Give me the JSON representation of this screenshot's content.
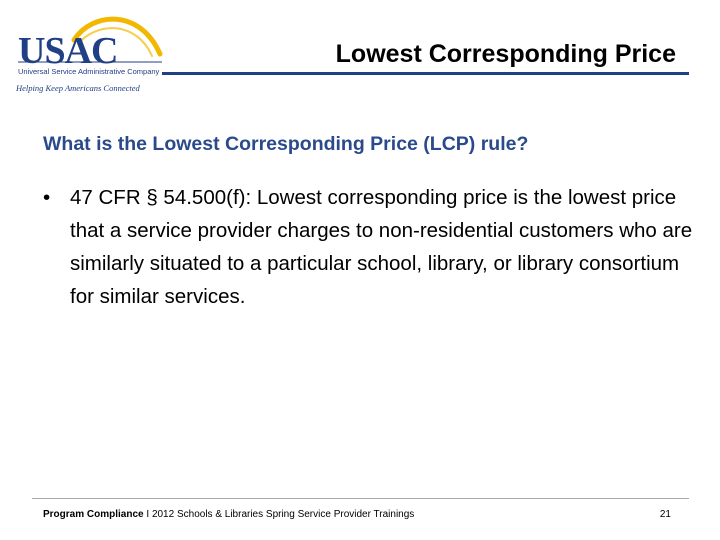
{
  "logo": {
    "wordmark": "USAC",
    "subtitle": "Universal Service Administrative Company",
    "tagline": "Helping Keep Americans Connected",
    "colors": {
      "navy": "#1f3f86",
      "gold": "#f2b800"
    }
  },
  "header": {
    "title": "Lowest Corresponding Price"
  },
  "content": {
    "subheading": "What is the Lowest Corresponding Price (LCP) rule?",
    "bullets": [
      {
        "marker": "•",
        "text": "47 CFR § 54.500(f): Lowest corresponding price is the lowest price that a service provider charges to non-residential customers who are similarly situated to a particular school, library, or library consortium for similar services."
      }
    ]
  },
  "footer": {
    "section": "Program Compliance",
    "separator": "I",
    "event": "2012 Schools & Libraries Spring Service Provider Trainings",
    "page_number": "21"
  }
}
